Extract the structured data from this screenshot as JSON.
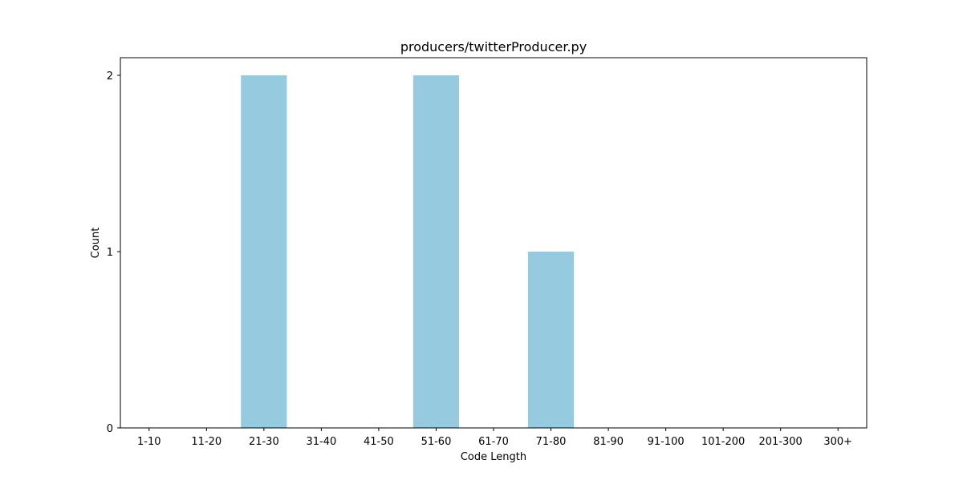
{
  "chart_data": {
    "type": "bar",
    "title": "producers/twitterProducer.py",
    "xlabel": "Code Length",
    "ylabel": "Count",
    "categories": [
      "1-10",
      "11-20",
      "21-30",
      "31-40",
      "41-50",
      "51-60",
      "61-70",
      "71-80",
      "81-90",
      "91-100",
      "101-200",
      "201-300",
      "300+"
    ],
    "values": [
      0,
      0,
      2,
      0,
      0,
      2,
      0,
      1,
      0,
      0,
      0,
      0,
      0
    ],
    "ylim": [
      0,
      2.1
    ],
    "yticks": [
      0,
      1,
      2
    ],
    "bar_color": "#96cade",
    "grid": false,
    "legend": false
  }
}
